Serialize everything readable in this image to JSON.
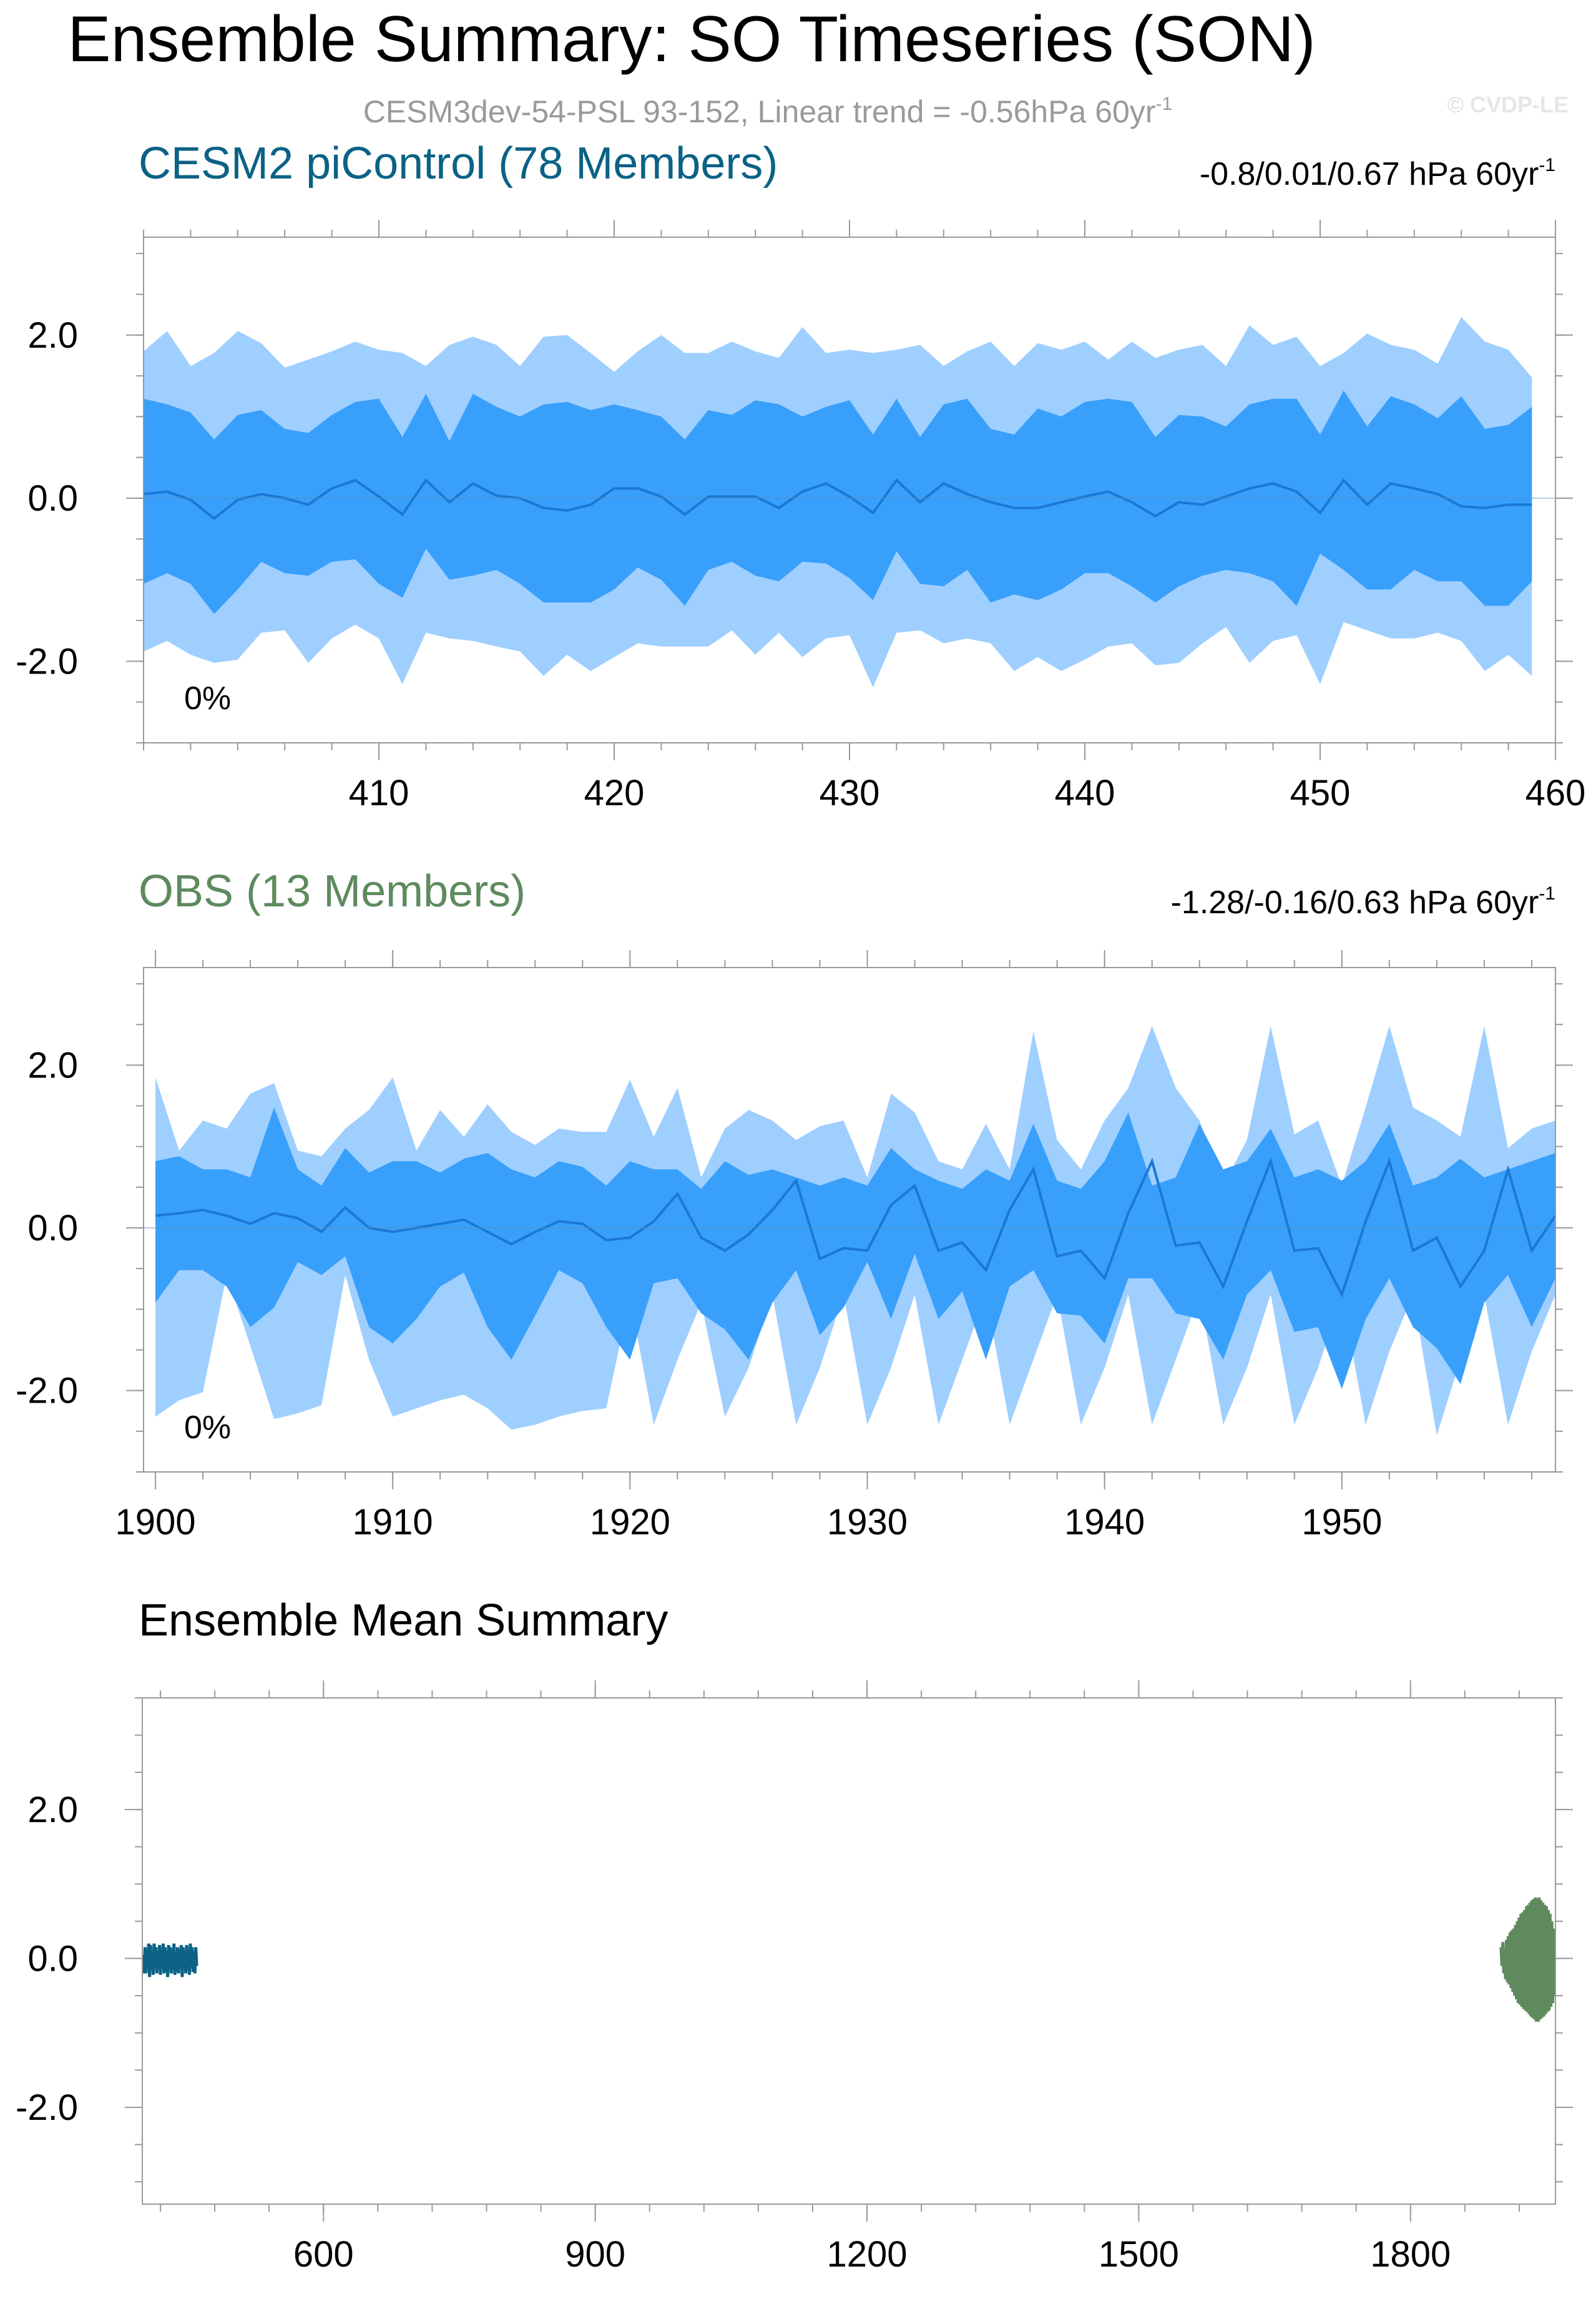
{
  "figure": {
    "title": "Ensemble Summary: SO Timeseries (SON)",
    "subtitle": "CESM3dev-54-PSL 93-152, Linear trend = -0.56hPa 60yr",
    "subtitle_sup": "-1",
    "copyright": "© CVDP-LE"
  },
  "colors": {
    "band_outer": "#9fcfff",
    "band_inner": "#389ffb",
    "mean_line": "#1a78d4",
    "control_title": "#0b6285",
    "obs_title": "#5e8a5e",
    "control_line": "#0b6285",
    "obs_line": "#5e8a5e",
    "axis": "#999999"
  },
  "chart_data": [
    {
      "type": "area",
      "title": "CESM2 piControl (78 Members)",
      "trend_text": "-0.8/0.01/0.67 hPa 60yr",
      "trend_sup": "-1",
      "pct_label": "0%",
      "xlim": [
        400,
        460
      ],
      "ylim": [
        -3.0,
        3.2
      ],
      "x_ticks": [
        410,
        420,
        430,
        440,
        450,
        460
      ],
      "x_tick_labels": [
        "410",
        "420",
        "430",
        "440",
        "450",
        "460"
      ],
      "y_ticks": [
        2.0,
        0.0,
        -2.0
      ],
      "y_tick_labels": [
        "2.0",
        "0.0",
        "-2.0"
      ],
      "x_start": 400,
      "series": [
        {
          "name": "max",
          "values": [
            1.8,
            2.05,
            1.62,
            1.78,
            2.05,
            1.9,
            1.6,
            1.7,
            1.8,
            1.92,
            1.82,
            1.78,
            1.62,
            1.88,
            1.98,
            1.88,
            1.62,
            1.98,
            2.0,
            1.78,
            1.55,
            1.8,
            2.0,
            1.78,
            1.78,
            1.92,
            1.8,
            1.72,
            2.1,
            1.78,
            1.82,
            1.78,
            1.82,
            1.88,
            1.62,
            1.8,
            1.92,
            1.62,
            1.9,
            1.82,
            1.92,
            1.7,
            1.92,
            1.72,
            1.82,
            1.88,
            1.62,
            2.12,
            1.88,
            1.98,
            1.62,
            1.78,
            2.02,
            1.88,
            1.82,
            1.65,
            2.22,
            1.92,
            1.82,
            1.48
          ]
        },
        {
          "name": "p84",
          "values": [
            1.22,
            1.15,
            1.05,
            0.72,
            1.02,
            1.08,
            0.85,
            0.8,
            1.02,
            1.18,
            1.22,
            0.75,
            1.28,
            0.7,
            1.28,
            1.12,
            1.0,
            1.15,
            1.18,
            1.08,
            1.15,
            1.08,
            1.0,
            0.72,
            1.08,
            1.02,
            1.2,
            1.15,
            1.0,
            1.12,
            1.2,
            0.78,
            1.22,
            0.75,
            1.15,
            1.22,
            0.85,
            0.78,
            1.1,
            1.0,
            1.18,
            1.22,
            1.18,
            0.75,
            1.02,
            1.0,
            0.88,
            1.15,
            1.22,
            1.22,
            0.78,
            1.32,
            0.88,
            1.25,
            1.15,
            0.98,
            1.25,
            0.85,
            0.9,
            1.12
          ]
        },
        {
          "name": "mean",
          "values": [
            0.05,
            0.08,
            -0.02,
            -0.25,
            -0.02,
            0.05,
            0.0,
            -0.08,
            0.12,
            0.22,
            0.02,
            -0.2,
            0.22,
            -0.05,
            0.18,
            0.03,
            0.0,
            -0.12,
            -0.15,
            -0.08,
            0.12,
            0.12,
            0.02,
            -0.2,
            0.02,
            0.02,
            0.02,
            -0.12,
            0.08,
            0.18,
            0.02,
            -0.18,
            0.22,
            -0.05,
            0.18,
            0.05,
            -0.05,
            -0.12,
            -0.12,
            -0.05,
            0.02,
            0.08,
            -0.05,
            -0.22,
            -0.05,
            -0.08,
            0.02,
            0.12,
            0.18,
            0.08,
            -0.18,
            0.22,
            -0.08,
            0.18,
            0.12,
            0.05,
            -0.1,
            -0.12,
            -0.08,
            -0.08
          ]
        },
        {
          "name": "p16",
          "values": [
            -1.05,
            -0.92,
            -1.05,
            -1.42,
            -1.12,
            -0.78,
            -0.92,
            -0.95,
            -0.78,
            -0.75,
            -1.05,
            -1.22,
            -0.62,
            -1.0,
            -0.95,
            -0.88,
            -1.05,
            -1.28,
            -1.28,
            -1.28,
            -1.12,
            -0.85,
            -1.0,
            -1.32,
            -0.88,
            -0.78,
            -0.95,
            -1.02,
            -0.78,
            -0.8,
            -0.98,
            -1.25,
            -0.65,
            -1.05,
            -1.08,
            -0.88,
            -1.28,
            -1.18,
            -1.25,
            -1.12,
            -0.92,
            -0.92,
            -1.08,
            -1.28,
            -1.08,
            -0.95,
            -0.88,
            -0.92,
            -1.02,
            -1.32,
            -0.68,
            -0.88,
            -1.12,
            -1.12,
            -0.88,
            -1.02,
            -1.02,
            -1.32,
            -1.32,
            -1.02
          ]
        },
        {
          "name": "min",
          "values": [
            -1.88,
            -1.75,
            -1.92,
            -2.02,
            -1.98,
            -1.65,
            -1.62,
            -2.02,
            -1.72,
            -1.55,
            -1.72,
            -2.28,
            -1.65,
            -1.72,
            -1.75,
            -1.82,
            -1.88,
            -2.18,
            -1.92,
            -2.12,
            -1.95,
            -1.78,
            -1.82,
            -1.82,
            -1.82,
            -1.62,
            -1.92,
            -1.65,
            -1.95,
            -1.72,
            -1.68,
            -2.32,
            -1.65,
            -1.62,
            -1.78,
            -1.72,
            -1.78,
            -2.12,
            -1.95,
            -2.12,
            -1.98,
            -1.82,
            -1.78,
            -2.05,
            -2.02,
            -1.78,
            -1.58,
            -2.02,
            -1.75,
            -1.68,
            -2.28,
            -1.52,
            -1.62,
            -1.72,
            -1.72,
            -1.65,
            -1.75,
            -2.12,
            -1.92,
            -2.18
          ]
        }
      ]
    },
    {
      "type": "area",
      "title": "OBS (13 Members)",
      "trend_text": "-1.28/-0.16/0.63 hPa 60yr",
      "trend_sup": "-1",
      "pct_label": "0%",
      "xlim": [
        1899.5,
        1959
      ],
      "ylim": [
        -3.0,
        3.2
      ],
      "x_ticks": [
        1900,
        1910,
        1920,
        1930,
        1940,
        1950
      ],
      "x_tick_labels": [
        "1900",
        "1910",
        "1920",
        "1930",
        "1940",
        "1950"
      ],
      "y_ticks": [
        2.0,
        0.0,
        -2.0
      ],
      "y_tick_labels": [
        "2.0",
        "0.0",
        "-2.0"
      ],
      "x_start": 1900,
      "series": [
        {
          "name": "max",
          "values": [
            1.85,
            0.95,
            1.32,
            1.22,
            1.65,
            1.78,
            0.95,
            0.88,
            1.22,
            1.45,
            1.85,
            0.95,
            1.45,
            1.12,
            1.52,
            1.18,
            1.02,
            1.22,
            1.18,
            1.18,
            1.82,
            1.12,
            1.72,
            0.62,
            1.22,
            1.45,
            1.32,
            1.08,
            1.25,
            1.32,
            0.62,
            1.65,
            1.42,
            0.82,
            0.72,
            1.28,
            0.72,
            2.42,
            1.08,
            0.72,
            1.32,
            1.72,
            2.48,
            1.72,
            1.32,
            0.52,
            1.08,
            2.48,
            1.15,
            1.32,
            0.52,
            1.48,
            2.48,
            1.48,
            1.32,
            1.12,
            2.48,
            0.98,
            1.22,
            1.32
          ]
        },
        {
          "name": "p84",
          "values": [
            0.82,
            0.88,
            0.72,
            0.72,
            0.62,
            1.48,
            0.72,
            0.52,
            0.98,
            0.68,
            0.82,
            0.82,
            0.68,
            0.85,
            0.92,
            0.72,
            0.62,
            0.82,
            0.75,
            0.52,
            0.82,
            0.72,
            0.72,
            0.48,
            0.82,
            0.65,
            0.72,
            0.62,
            0.52,
            0.62,
            0.52,
            0.98,
            0.72,
            0.58,
            0.48,
            0.72,
            0.58,
            1.28,
            0.58,
            0.48,
            0.82,
            1.42,
            0.52,
            0.62,
            1.28,
            0.72,
            0.82,
            1.22,
            0.62,
            0.72,
            0.58,
            0.82,
            1.28,
            0.52,
            0.62,
            0.85,
            0.62,
            0.72,
            0.82,
            0.92
          ]
        },
        {
          "name": "mean",
          "values": [
            0.15,
            0.18,
            0.22,
            0.15,
            0.05,
            0.18,
            0.12,
            -0.05,
            0.25,
            0.0,
            -0.05,
            0.0,
            0.05,
            0.1,
            -0.05,
            -0.2,
            -0.05,
            0.08,
            0.05,
            -0.15,
            -0.12,
            0.08,
            0.42,
            -0.12,
            -0.28,
            -0.08,
            0.22,
            0.58,
            -0.38,
            -0.25,
            -0.28,
            0.28,
            0.52,
            -0.28,
            -0.18,
            -0.52,
            0.22,
            0.72,
            -0.35,
            -0.28,
            -0.62,
            0.18,
            0.82,
            -0.22,
            -0.18,
            -0.72,
            0.08,
            0.82,
            -0.28,
            -0.25,
            -0.82,
            0.08,
            0.82,
            -0.28,
            -0.12,
            -0.72,
            -0.28,
            0.72,
            -0.28,
            0.15
          ]
        },
        {
          "name": "p16",
          "values": [
            -0.92,
            -0.52,
            -0.52,
            -0.72,
            -1.22,
            -0.98,
            -0.42,
            -0.58,
            -0.35,
            -1.22,
            -1.42,
            -1.12,
            -0.72,
            -0.55,
            -1.22,
            -1.62,
            -1.08,
            -0.52,
            -0.68,
            -1.22,
            -1.62,
            -0.68,
            -0.62,
            -1.05,
            -1.25,
            -1.62,
            -0.92,
            -0.52,
            -1.32,
            -0.98,
            -0.42,
            -1.12,
            -0.32,
            -1.12,
            -0.78,
            -1.62,
            -0.72,
            -0.52,
            -1.05,
            -1.08,
            -1.42,
            -0.62,
            -0.62,
            -1.05,
            -1.12,
            -1.62,
            -0.82,
            -0.52,
            -1.28,
            -1.22,
            -1.98,
            -1.12,
            -0.62,
            -1.22,
            -1.48,
            -1.92,
            -0.92,
            -0.58,
            -1.22,
            -0.62
          ]
        },
        {
          "name": "min",
          "values": [
            -2.32,
            -2.12,
            -2.02,
            -0.58,
            -1.45,
            -2.35,
            -2.28,
            -2.18,
            -0.58,
            -1.62,
            -2.32,
            -2.22,
            -2.12,
            -2.05,
            -2.22,
            -2.48,
            -2.42,
            -2.32,
            -2.25,
            -2.22,
            -0.85,
            -2.42,
            -1.62,
            -0.92,
            -2.32,
            -1.72,
            -0.82,
            -2.42,
            -1.72,
            -0.82,
            -2.42,
            -1.72,
            -0.82,
            -2.42,
            -1.62,
            -0.82,
            -2.42,
            -1.62,
            -0.82,
            -2.42,
            -1.72,
            -0.82,
            -2.42,
            -1.62,
            -0.82,
            -2.42,
            -1.72,
            -0.82,
            -2.42,
            -1.72,
            -0.82,
            -2.42,
            -1.52,
            -0.82,
            -2.55,
            -1.62,
            -0.82,
            -2.42,
            -1.52,
            -0.82
          ]
        }
      ]
    },
    {
      "type": "line",
      "title": "Ensemble Mean Summary",
      "xlim": [
        400,
        1960
      ],
      "ylim": [
        -3.3,
        3.5
      ],
      "x_ticks": [
        600,
        900,
        1200,
        1500,
        1800
      ],
      "x_tick_labels": [
        "600",
        "900",
        "1200",
        "1500",
        "1800"
      ],
      "y_ticks": [
        2.0,
        0.0,
        -2.0
      ],
      "y_tick_labels": [
        "2.0",
        "0.0",
        "-2.0"
      ],
      "control_series": {
        "name": "CESM2 piControl",
        "x_start": 401,
        "values": [
          0.05,
          -0.2,
          0.15,
          -0.2,
          0.12,
          -0.1,
          0.2,
          -0.25,
          0.18,
          -0.15,
          0.1,
          -0.22,
          0.2,
          -0.05,
          0.15,
          -0.2,
          0.1,
          -0.15,
          0.18,
          -0.22,
          0.12,
          -0.08,
          0.2,
          -0.2,
          0.15,
          -0.18,
          0.1,
          -0.25,
          0.18,
          -0.1,
          0.15,
          -0.2,
          0.12,
          -0.15,
          0.2,
          -0.22,
          0.08,
          -0.18,
          0.15,
          -0.2,
          0.12,
          -0.1,
          0.18,
          -0.25,
          0.15,
          -0.12,
          0.1,
          -0.2,
          0.18,
          -0.15,
          0.12,
          -0.22,
          0.2,
          -0.1,
          0.15,
          -0.18,
          0.1,
          -0.2,
          0.15,
          -0.1
        ]
      },
      "obs_series": {
        "name": "OBS",
        "x_start": 1900,
        "values": [
          0.15,
          -0.1,
          0.22,
          -0.2,
          0.1,
          -0.28,
          0.25,
          -0.32,
          0.3,
          -0.35,
          0.35,
          -0.4,
          0.38,
          -0.45,
          0.4,
          -0.5,
          0.45,
          -0.55,
          0.5,
          -0.6,
          0.55,
          -0.62,
          0.6,
          -0.65,
          0.62,
          -0.68,
          0.65,
          -0.7,
          0.7,
          -0.72,
          0.72,
          -0.75,
          0.75,
          -0.78,
          0.78,
          -0.8,
          0.8,
          -0.82,
          0.82,
          -0.85,
          0.8,
          -0.85,
          0.82,
          -0.82,
          0.78,
          -0.8,
          0.75,
          -0.78,
          0.72,
          -0.75,
          0.7,
          -0.72,
          0.65,
          -0.7,
          0.6,
          -0.65,
          0.5,
          -0.6,
          0.4,
          -0.5
        ]
      }
    }
  ]
}
